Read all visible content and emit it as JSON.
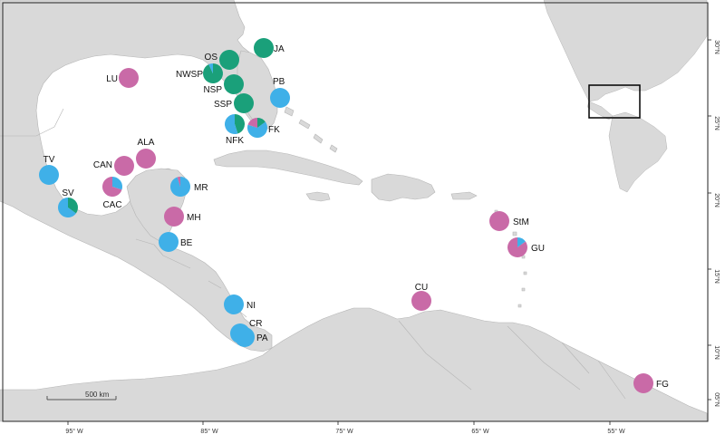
{
  "map": {
    "colors": {
      "ocean": "#ffffff",
      "land": "#d9d9d9",
      "land_stroke": "#b5b5b5",
      "frame": "#222222",
      "green": "#1aa07a",
      "blue": "#3fb0e8",
      "pink": "#c96aa7"
    },
    "compass_icon": "north-arrow-compass-icon",
    "scale_bar": {
      "label": "500 km"
    },
    "longitude_ticks": [
      "95° W",
      "85° W",
      "75° W",
      "65° W",
      "55° W"
    ],
    "latitude_ticks": [
      "30°N",
      "25°N",
      "20°N",
      "15°N",
      "10°N",
      "05°N"
    ],
    "inset": {
      "label": ""
    }
  },
  "sites": [
    {
      "code": "JA",
      "composition": {
        "green": 1.0
      }
    },
    {
      "code": "OS",
      "composition": {
        "green": 1.0
      }
    },
    {
      "code": "NWSP",
      "composition": {
        "green": 0.93,
        "blue": 0.07
      }
    },
    {
      "code": "NSP",
      "composition": {
        "green": 1.0
      }
    },
    {
      "code": "SSP",
      "composition": {
        "green": 1.0
      }
    },
    {
      "code": "PB",
      "composition": {
        "blue": 1.0
      }
    },
    {
      "code": "LU",
      "composition": {
        "pink": 1.0
      }
    },
    {
      "code": "NFK",
      "composition": {
        "green": 0.45,
        "blue": 0.55
      }
    },
    {
      "code": "FK",
      "composition": {
        "green": 0.15,
        "pink": 0.2,
        "blue": 0.65
      }
    },
    {
      "code": "ALA",
      "composition": {
        "pink": 1.0
      }
    },
    {
      "code": "CAN",
      "composition": {
        "pink": 1.0
      }
    },
    {
      "code": "CAC",
      "composition": {
        "blue": 0.3,
        "pink": 0.7
      }
    },
    {
      "code": "TV",
      "composition": {
        "blue": 1.0
      }
    },
    {
      "code": "SV",
      "composition": {
        "green": 0.35,
        "blue": 0.65
      }
    },
    {
      "code": "MR",
      "composition": {
        "blue": 0.95,
        "pink": 0.05
      }
    },
    {
      "code": "MH",
      "composition": {
        "pink": 1.0
      }
    },
    {
      "code": "BE",
      "composition": {
        "blue": 1.0
      }
    },
    {
      "code": "NI",
      "composition": {
        "blue": 1.0
      }
    },
    {
      "code": "CR",
      "composition": {
        "blue": 1.0
      }
    },
    {
      "code": "PA",
      "composition": {
        "blue": 1.0
      }
    },
    {
      "code": "CU",
      "composition": {
        "pink": 1.0
      }
    },
    {
      "code": "StM",
      "composition": {
        "pink": 1.0
      }
    },
    {
      "code": "GU",
      "composition": {
        "blue": 0.15,
        "pink": 0.85
      }
    },
    {
      "code": "FG",
      "composition": {
        "pink": 1.0
      }
    }
  ]
}
